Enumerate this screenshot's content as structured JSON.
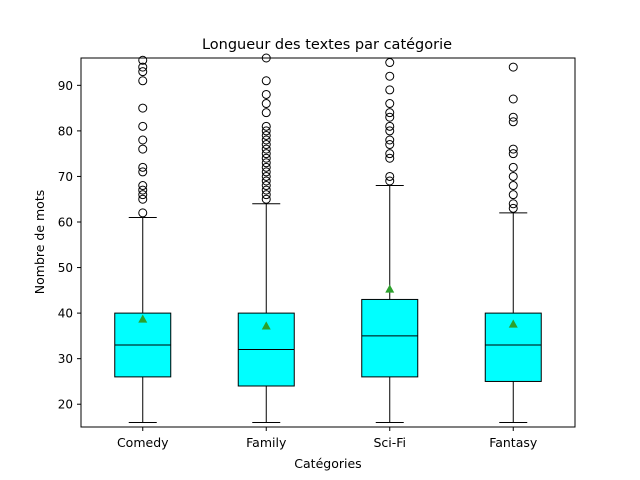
{
  "chart_data": {
    "type": "box",
    "title": "Longueur des textes par catégorie",
    "xlabel": "Catégories",
    "ylabel": "Nombre de mots",
    "ylim": [
      15,
      96
    ],
    "yticks": [
      20,
      30,
      40,
      50,
      60,
      70,
      80,
      90
    ],
    "grid": false,
    "box_color": "#00ffff",
    "mean_marker_color": "#2ca02c",
    "categories": [
      "Comedy",
      "Family",
      "Sci-Fi",
      "Fantasy"
    ],
    "boxes": [
      {
        "label": "Comedy",
        "whisker_low": 16,
        "q1": 26,
        "median": 33,
        "q3": 40,
        "whisker_high": 61,
        "mean": 38.7,
        "outliers": [
          62,
          65,
          66,
          67,
          68,
          71,
          72,
          76,
          78,
          81,
          85,
          91,
          93,
          94,
          95.5
        ]
      },
      {
        "label": "Family",
        "whisker_low": 16,
        "q1": 24,
        "median": 32,
        "q3": 40,
        "whisker_high": 64,
        "mean": 37.2,
        "outliers": [
          65,
          66,
          67,
          68,
          69,
          70,
          71,
          72,
          73,
          74,
          75,
          76,
          77,
          78,
          79,
          80,
          81,
          84,
          86,
          88,
          91,
          96
        ]
      },
      {
        "label": "Sci-Fi",
        "whisker_low": 16,
        "q1": 26,
        "median": 35,
        "q3": 43,
        "whisker_high": 68,
        "mean": 45.3,
        "outliers": [
          69,
          70,
          74,
          75,
          77,
          78,
          80,
          81,
          83,
          84,
          86,
          89,
          92,
          95
        ]
      },
      {
        "label": "Fantasy",
        "whisker_low": 16,
        "q1": 25,
        "median": 33,
        "q3": 40,
        "whisker_high": 62,
        "mean": 37.6,
        "outliers": [
          63,
          64,
          66,
          68,
          70,
          72,
          75,
          76,
          82,
          83,
          87,
          94
        ]
      }
    ]
  }
}
